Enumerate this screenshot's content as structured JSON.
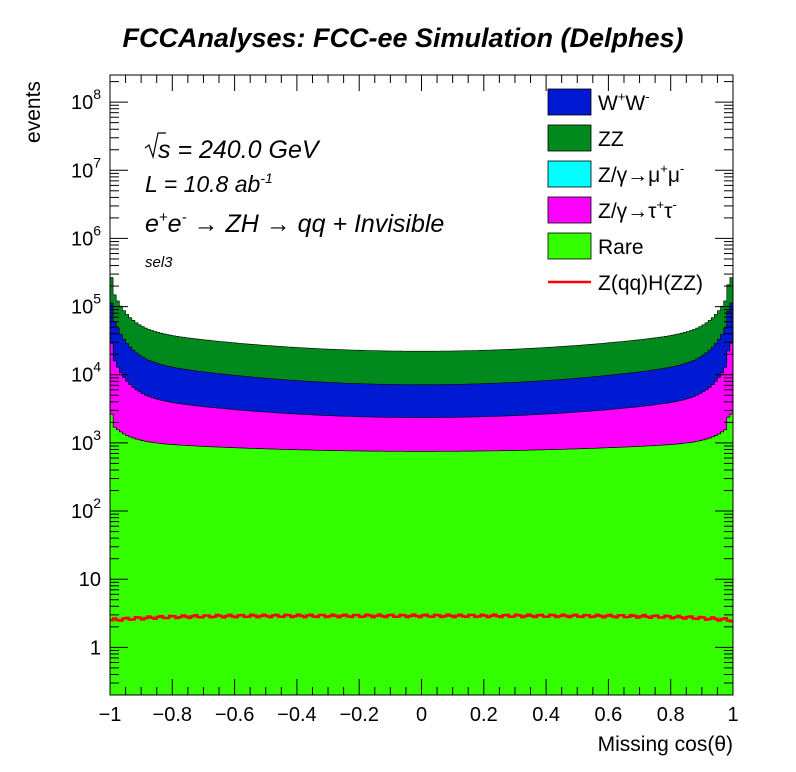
{
  "chart_data": {
    "type": "area",
    "title": "FCCAnalyses: FCC-ee Simulation (Delphes)",
    "xlabel": "Missing cos(θ)",
    "ylabel": "events",
    "xlim": [
      -1,
      1
    ],
    "ylim": [
      0.2,
      250000000
    ],
    "log_y": true,
    "stacked": true,
    "x_ticks": [
      "−1",
      "−0.8",
      "−0.6",
      "−0.4",
      "−0.2",
      "0",
      "0.2",
      "0.4",
      "0.6",
      "0.8",
      "1"
    ],
    "y_ticks": [
      {
        "value": 1,
        "base": "1",
        "exp": ""
      },
      {
        "value": 10,
        "base": "10",
        "exp": ""
      },
      {
        "value": 100,
        "base": "10",
        "exp": "2"
      },
      {
        "value": 1000,
        "base": "10",
        "exp": "3"
      },
      {
        "value": 10000,
        "base": "10",
        "exp": "4"
      },
      {
        "value": 100000,
        "base": "10",
        "exp": "5"
      },
      {
        "value": 1000000,
        "base": "10",
        "exp": "6"
      },
      {
        "value": 10000000,
        "base": "10",
        "exp": "7"
      },
      {
        "value": 100000000,
        "base": "10",
        "exp": "8"
      }
    ],
    "annotations": {
      "sqrt_s": "s",
      "energy": " = 240.0 GeV",
      "lumi": "L = 10.8 ab",
      "lumi_exp": "-1",
      "process_e": "e",
      "process_plus": "+",
      "process_e2": "e",
      "process_minus": "-",
      "process_rest": " → ZH → qq + Invisible",
      "selection": "sel3"
    },
    "legend_position": "top-right",
    "series": [
      {
        "name": "W⁺W⁻",
        "label_main": "W",
        "sup1": "+",
        "label_mid": "W",
        "sup2": "-",
        "color": "#0019d2",
        "kind": "fill",
        "edge": 70000,
        "center": 4800
      },
      {
        "name": "ZZ",
        "label_main": "ZZ",
        "color": "#00891d",
        "kind": "fill",
        "edge": 125000,
        "center": 15000
      },
      {
        "name": "Z/γ→μ⁺μ⁻",
        "label_main": "Z/γ→μ",
        "sup1": "+",
        "label_mid": "μ",
        "sup2": "-",
        "color": "#00ffff",
        "kind": "fill",
        "edge": 3,
        "center": 0.6
      },
      {
        "name": "Z/γ→τ⁺τ⁻",
        "label_main": "Z/γ→τ",
        "sup1": "+",
        "label_mid": "τ",
        "sup2": "-",
        "color": "#ff00ff",
        "kind": "fill",
        "edge": 22000,
        "center": 1600
      },
      {
        "name": "Rare",
        "label_main": "Rare",
        "color": "#33ff00",
        "kind": "fill",
        "edge": 2000,
        "center": 750
      },
      {
        "name": "Z(qq)H(ZZ)",
        "label_main": "Z(qq)H(ZZ)",
        "color": "#ff0000",
        "kind": "line",
        "edge": 2.5,
        "center": 2.9
      }
    ]
  }
}
